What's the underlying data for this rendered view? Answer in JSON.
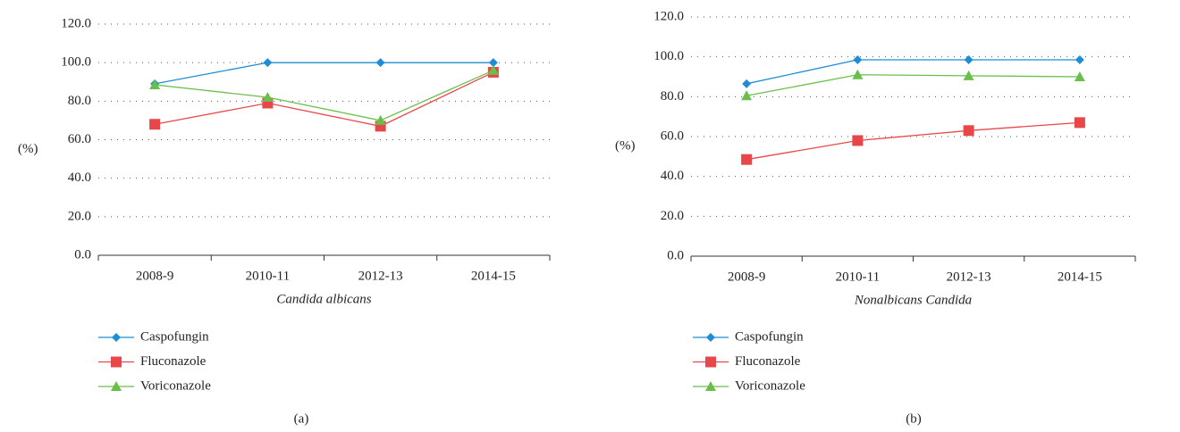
{
  "chart_data": [
    {
      "type": "line",
      "caption": "(a)",
      "x_label": "Candida albicans",
      "y_label": "(%)",
      "categories": [
        "2008-9",
        "2010-11",
        "2012-13",
        "2014-15"
      ],
      "series": [
        {
          "name": "Caspofungin",
          "color": "#1f8dd6",
          "marker": "diamond",
          "values": [
            89,
            100,
            100,
            100
          ]
        },
        {
          "name": "Fluconazole",
          "color": "#e8474a",
          "marker": "square",
          "values": [
            68,
            79,
            67,
            95
          ]
        },
        {
          "name": "Voriconazole",
          "color": "#6abf4b",
          "marker": "triangle",
          "values": [
            88.5,
            82,
            70,
            96
          ]
        }
      ],
      "ylim": [
        0,
        120
      ],
      "yticks": [
        {
          "value": 0,
          "label": "0.0"
        },
        {
          "value": 20,
          "label": "20.0"
        },
        {
          "value": 40,
          "label": "40.0"
        },
        {
          "value": 60,
          "label": "60.0"
        },
        {
          "value": 80,
          "label": "80.0"
        },
        {
          "value": 100,
          "label": "100.0"
        },
        {
          "value": 120,
          "label": "120.0"
        }
      ],
      "grid": true,
      "legend": "bottom"
    },
    {
      "type": "line",
      "caption": "(b)",
      "x_label": "Nonalbicans Candida",
      "y_label": "(%)",
      "categories": [
        "2008-9",
        "2010-11",
        "2012-13",
        "2014-15"
      ],
      "series": [
        {
          "name": "Caspofungin",
          "color": "#1f8dd6",
          "marker": "diamond",
          "values": [
            86.5,
            98.5,
            98.5,
            98.5
          ]
        },
        {
          "name": "Fluconazole",
          "color": "#e8474a",
          "marker": "square",
          "values": [
            48.5,
            58,
            63,
            67
          ]
        },
        {
          "name": "Voriconazole",
          "color": "#6abf4b",
          "marker": "triangle",
          "values": [
            80.5,
            91,
            90.5,
            90
          ]
        }
      ],
      "ylim": [
        0,
        120
      ],
      "yticks": [
        {
          "value": 0,
          "label": "0.0"
        },
        {
          "value": 20,
          "label": "20.0"
        },
        {
          "value": 40,
          "label": "40.0"
        },
        {
          "value": 60,
          "label": "60.0"
        },
        {
          "value": 80,
          "label": "80.0"
        },
        {
          "value": 100,
          "label": "100.0"
        },
        {
          "value": 120,
          "label": "120.0"
        }
      ],
      "grid": true,
      "legend": "bottom"
    }
  ]
}
